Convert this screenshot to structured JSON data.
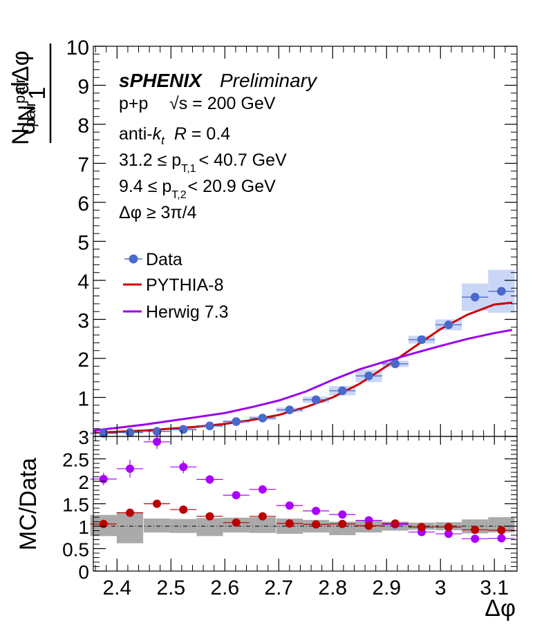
{
  "labels": {
    "ylabel_top": {
      "numerator": "dN",
      "numerator_sub": "pair",
      "prefactor": "1",
      "denominator": "N",
      "denominator_sub": "pair",
      "denominator_rest": "dΔφ"
    },
    "ylabel_bottom": "MC/Data",
    "xlabel": "Δφ",
    "experiment": "sPHENIX",
    "status": "Preliminary",
    "system": "p+p",
    "energy": "√s = 200 GeV",
    "algo_prefix": "anti-",
    "algo_k": "k",
    "algo_t": "t",
    "algo_R": "R",
    "algo_rest": " = 0.4",
    "pt1_left": "31.2 ≤ p",
    "pt1_sub": "T,1",
    "pt1_right": "< 40.7 GeV",
    "pt2_left": "9.4 ≤ p",
    "pt2_sub": "T,2",
    "pt2_right": "< 20.9 GeV",
    "dphi_cut": "Δφ  ≥ 3π/4"
  },
  "legend": [
    {
      "name": "Data",
      "color": "#4a69cc",
      "kind": "marker"
    },
    {
      "name": "PYTHIA-8",
      "color": "#cc0000",
      "kind": "line"
    },
    {
      "name": "Herwig 7.3",
      "color": "#9900ee",
      "kind": "line"
    }
  ],
  "colors": {
    "data": "#4a69cc",
    "data_syst": "#c9d6f7",
    "pythia": "#cc0000",
    "pythia_marker": "#bb0000",
    "herwig": "#9900ee",
    "herwig_marker": "#aa00ff",
    "ratio_syst": "#aaaaaa"
  },
  "chart_data": [
    {
      "type": "scatter",
      "panel": "main",
      "xlim": [
        2.356,
        3.142
      ],
      "ylim": [
        0,
        10
      ],
      "x_ticks": [
        2.4,
        2.5,
        2.6,
        2.7,
        2.8,
        2.9,
        3,
        3.1
      ],
      "x_tick_labels": [
        "2.4",
        "2.5",
        "2.6",
        "2.7",
        "2.8",
        "2.9",
        "3",
        "3.1"
      ],
      "y_ticks": [
        1,
        2,
        3,
        4,
        5,
        6,
        7,
        8,
        9,
        10
      ],
      "y_tick_labels": [
        "1",
        "2",
        "3",
        "4",
        "5",
        "6",
        "7",
        "8",
        "9",
        "10"
      ],
      "series": [
        {
          "name": "Data",
          "x": [
            2.375,
            2.424,
            2.474,
            2.523,
            2.572,
            2.621,
            2.67,
            2.72,
            2.769,
            2.818,
            2.867,
            2.916,
            2.965,
            3.015,
            3.064,
            3.113
          ],
          "y": [
            0.08,
            0.1,
            0.13,
            0.18,
            0.27,
            0.38,
            0.47,
            0.68,
            0.94,
            1.17,
            1.55,
            1.86,
            2.48,
            2.86,
            3.57,
            3.72
          ],
          "syst_err": [
            0.02,
            0.02,
            0.02,
            0.03,
            0.03,
            0.04,
            0.05,
            0.06,
            0.08,
            0.12,
            0.16,
            0.08,
            0.1,
            0.14,
            0.35,
            0.55
          ]
        },
        {
          "name": "PYTHIA-8",
          "x": [
            2.356,
            2.4,
            2.45,
            2.5,
            2.55,
            2.6,
            2.65,
            2.7,
            2.75,
            2.8,
            2.85,
            2.9,
            2.95,
            3.0,
            3.05,
            3.1,
            3.133
          ],
          "y": [
            0.09,
            0.12,
            0.15,
            0.2,
            0.25,
            0.32,
            0.42,
            0.55,
            0.75,
            1.0,
            1.35,
            1.8,
            2.28,
            2.75,
            3.12,
            3.38,
            3.43
          ]
        },
        {
          "name": "Herwig 7.3",
          "x": [
            2.356,
            2.4,
            2.45,
            2.5,
            2.55,
            2.6,
            2.65,
            2.7,
            2.75,
            2.8,
            2.85,
            2.9,
            2.95,
            3.0,
            3.05,
            3.1,
            3.133
          ],
          "y": [
            0.15,
            0.22,
            0.3,
            0.4,
            0.5,
            0.6,
            0.75,
            0.92,
            1.15,
            1.45,
            1.72,
            1.93,
            2.13,
            2.32,
            2.5,
            2.65,
            2.73
          ]
        }
      ]
    },
    {
      "type": "scatter",
      "panel": "ratio",
      "xlim": [
        2.356,
        3.142
      ],
      "ylim": [
        0,
        3
      ],
      "xlabel": "Δφ",
      "ylabel": "MC/Data",
      "y_ticks": [
        0,
        0.5,
        1,
        1.5,
        2,
        2.5,
        3
      ],
      "y_tick_labels": [
        "0",
        "0.5",
        "1",
        "1.5",
        "2",
        "2.5",
        "3"
      ],
      "reference_line": 1,
      "series": [
        {
          "name": "PYTHIA-8",
          "x": [
            2.375,
            2.424,
            2.474,
            2.523,
            2.572,
            2.621,
            2.67,
            2.72,
            2.769,
            2.818,
            2.867,
            2.916,
            2.965,
            3.015,
            3.064,
            3.113
          ],
          "y": [
            1.05,
            1.3,
            1.5,
            1.37,
            1.22,
            1.08,
            1.22,
            1.06,
            1.04,
            1.05,
            1.01,
            1.06,
            0.98,
            0.98,
            0.92,
            0.91
          ],
          "err": [
            0.05,
            0.07,
            0.09,
            0.05,
            0.04,
            0.04,
            0.05,
            0.04,
            0.04,
            0.04,
            0.03,
            0.03,
            0.03,
            0.03,
            0.04,
            0.05
          ]
        },
        {
          "name": "Herwig 7.3",
          "x": [
            2.375,
            2.424,
            2.474,
            2.523,
            2.572,
            2.621,
            2.67,
            2.72,
            2.769,
            2.818,
            2.867,
            2.916,
            2.965,
            3.015,
            3.064,
            3.113
          ],
          "y": [
            2.05,
            2.28,
            2.88,
            2.32,
            2.04,
            1.69,
            1.82,
            1.46,
            1.34,
            1.26,
            1.13,
            1.04,
            0.87,
            0.83,
            0.72,
            0.73
          ],
          "err": [
            0.14,
            0.2,
            0.16,
            0.14,
            0.1,
            0.05,
            0.06,
            0.05,
            0.05,
            0.05,
            0.04,
            0.04,
            0.04,
            0.04,
            0.05,
            0.05
          ]
        },
        {
          "name": "Data syst.",
          "x": [
            2.375,
            2.424,
            2.474,
            2.523,
            2.572,
            2.621,
            2.67,
            2.72,
            2.769,
            2.818,
            2.867,
            2.916,
            2.965,
            3.015,
            3.064,
            3.113
          ],
          "low": [
            0.78,
            0.62,
            0.86,
            0.85,
            0.78,
            0.86,
            0.85,
            0.83,
            0.86,
            0.8,
            0.86,
            0.9,
            0.92,
            0.91,
            0.84,
            0.86
          ],
          "high": [
            1.25,
            1.3,
            1.17,
            1.16,
            1.18,
            1.19,
            1.2,
            1.17,
            1.14,
            1.1,
            1.14,
            1.1,
            1.08,
            1.09,
            1.15,
            1.2
          ]
        }
      ]
    }
  ]
}
